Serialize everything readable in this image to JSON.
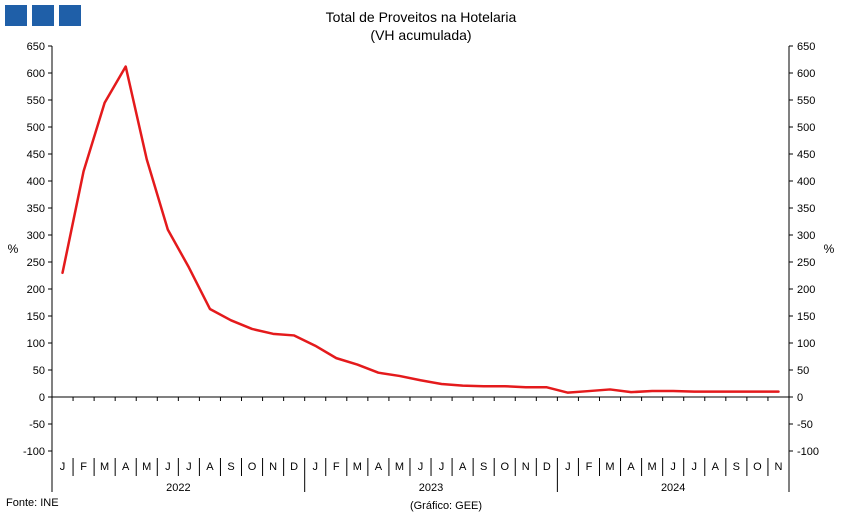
{
  "header": {
    "logo_blocks": [
      "blue-block",
      "blue-block",
      "blue-block"
    ],
    "logo_color": "#1f5fa8"
  },
  "chart_data": {
    "type": "line",
    "title": "Total de Proveitos na Hotelaria",
    "subtitle": "(VH acumulada)",
    "ylabel_left": "%",
    "ylabel_right": "%",
    "ylim": [
      -100,
      650
    ],
    "yticks": [
      650,
      600,
      550,
      500,
      450,
      400,
      350,
      300,
      250,
      200,
      150,
      100,
      50,
      0,
      -50,
      -100
    ],
    "grid": false,
    "months": [
      "J",
      "F",
      "M",
      "A",
      "M",
      "J",
      "J",
      "A",
      "S",
      "O",
      "N",
      "D",
      "J",
      "F",
      "M",
      "A",
      "M",
      "J",
      "J",
      "A",
      "S",
      "O",
      "N",
      "D",
      "J",
      "F",
      "M",
      "A",
      "M",
      "J",
      "J",
      "A",
      "S",
      "O",
      "N"
    ],
    "years": [
      {
        "label": "2022",
        "start": 0,
        "count": 12
      },
      {
        "label": "2023",
        "start": 12,
        "count": 12
      },
      {
        "label": "2024",
        "start": 24,
        "count": 11
      }
    ],
    "series": [
      {
        "color": "#e41a1c",
        "values": [
          230,
          418,
          545,
          612,
          440,
          310,
          240,
          163,
          142,
          126,
          117,
          114,
          95,
          72,
          60,
          45,
          39,
          31,
          24,
          21,
          20,
          20,
          18,
          18,
          8,
          11,
          14,
          9,
          11,
          11,
          10,
          10,
          10,
          10,
          10
        ]
      }
    ]
  },
  "footer": {
    "source": "Fonte: INE",
    "credit": "(Gráfico: GEE)"
  }
}
